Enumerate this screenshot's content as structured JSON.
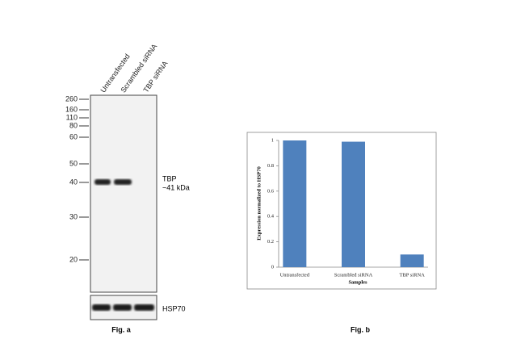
{
  "blot": {
    "lanes": [
      "Untransfected",
      "Scrambled siRNA",
      "TBP siRNA"
    ],
    "markers": [
      "260",
      "160",
      "110",
      "80",
      "60",
      "50",
      "40",
      "30",
      "20"
    ],
    "band_label": "TBP",
    "band_size": "~41 kDa",
    "control_label": "HSP70",
    "caption": "Fig. a"
  },
  "chart_data": {
    "type": "bar",
    "categories": [
      "Untransfected",
      "Scrambled siRNA",
      "TBP siRNA"
    ],
    "values": [
      1,
      0.99,
      0.1
    ],
    "color": "#4f81bd",
    "ylim": [
      0,
      1
    ],
    "yticks": [
      0,
      0.2,
      0.4,
      0.6,
      0.8,
      1
    ],
    "ylabel": "Expression normalized to HSP70",
    "xlabel": "Samples",
    "caption": "Fig. b"
  }
}
